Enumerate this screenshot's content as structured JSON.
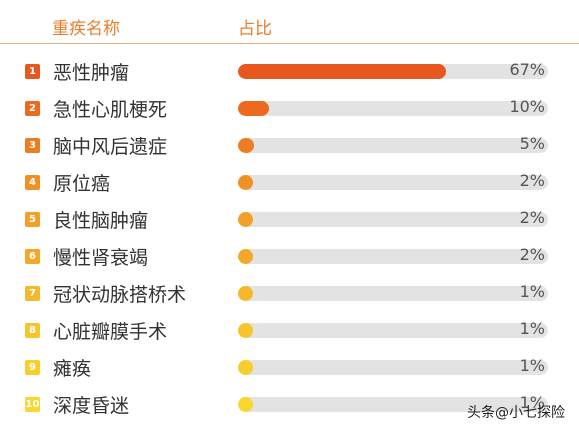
{
  "header": {
    "col_name": "重疾名称",
    "col_ratio": "占比"
  },
  "watermark": "头条@小七探险",
  "chart_data": {
    "type": "bar",
    "orientation": "horizontal",
    "categories": [
      "恶性肿瘤",
      "急性心肌梗死",
      "脑中风后遗症",
      "原位癌",
      "良性脑肿瘤",
      "慢性肾衰竭",
      "冠状动脉搭桥术",
      "心脏瓣膜手术",
      "瘫痪",
      "深度昏迷"
    ],
    "values": [
      67,
      10,
      5,
      2,
      2,
      2,
      1,
      1,
      1,
      1
    ],
    "value_labels": [
      "67%",
      "10%",
      "5%",
      "2%",
      "2%",
      "2%",
      "1%",
      "1%",
      "1%",
      "1%"
    ],
    "ranks": [
      "1",
      "2",
      "3",
      "4",
      "5",
      "6",
      "7",
      "8",
      "9",
      "10"
    ],
    "colors": [
      "#e8571d",
      "#eb6a1f",
      "#ee7d22",
      "#f09126",
      "#f2a028",
      "#f3a82a",
      "#f5b82b",
      "#f6c52c",
      "#f8ce2d",
      "#f9d72e"
    ],
    "ylim": [
      0,
      100
    ]
  }
}
